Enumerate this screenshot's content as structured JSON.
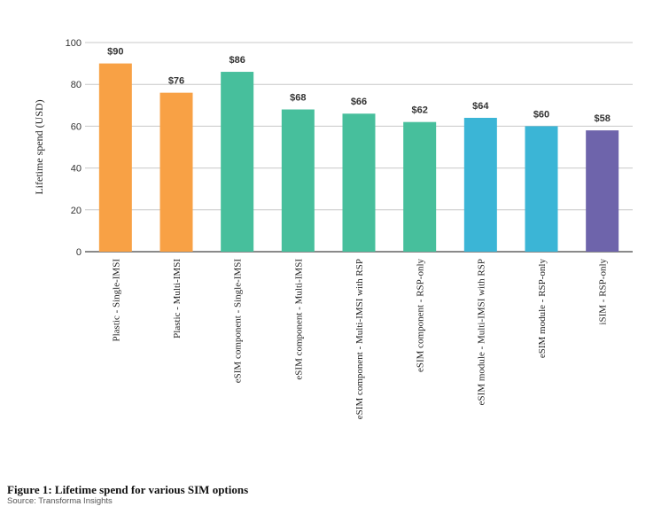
{
  "chart_data": {
    "type": "bar",
    "ylabel": "Lifetime spend (USD)",
    "xlabel": "",
    "ylim": [
      0,
      100
    ],
    "yticks": [
      0,
      20,
      40,
      60,
      80,
      100
    ],
    "grid": true,
    "categories": [
      "Plastic - Single-IMSI",
      "Plastic - Multi-IMSI",
      "eSIM component - Single-IMSI",
      "eSIM component - Multi-IMSI",
      "eSIM component - Multi-IMSI with RSP",
      "eSIM component - RSP-only",
      "eSIM module - Multi-IMSI with RSP",
      "eSIM module - RSP-only",
      "iSIM - RSP-only"
    ],
    "values": [
      90,
      76,
      86,
      68,
      66,
      62,
      64,
      60,
      58
    ],
    "data_labels": [
      "$90",
      "$76",
      "$86",
      "$68",
      "$66",
      "$62",
      "$64",
      "$60",
      "$58"
    ],
    "colors": [
      "#F8A145",
      "#F8A145",
      "#47BF9C",
      "#47BF9C",
      "#47BF9C",
      "#47BF9C",
      "#3BB5D6",
      "#3BB5D6",
      "#6E64AB"
    ]
  },
  "caption": {
    "title": "Figure 1: Lifetime spend for various SIM options",
    "source": "Source: Transforma Insights"
  }
}
